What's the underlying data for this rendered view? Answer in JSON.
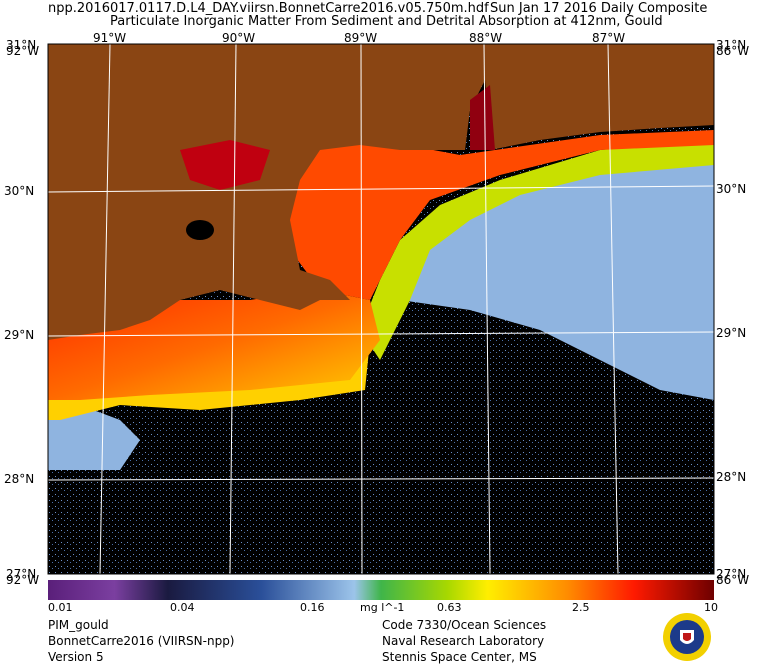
{
  "header": {
    "filename": "npp.2016017.0117.D.L4_DAY.viirsn.BonnetCarre2016.v05.750m.hdf",
    "date": "Sun Jan 17 2016 Daily Composite",
    "subtitle": "Particulate Inorganic Matter From Sediment and Detrital Absorption at 412nm, Gould"
  },
  "map": {
    "lon_ticks": [
      "91°W",
      "90°W",
      "89°W",
      "88°W",
      "87°W"
    ],
    "lat_ticks": [
      "30°N",
      "29°N",
      "28°N"
    ],
    "corner_labels": {
      "top_left": "31°N",
      "top_left_lon": "92°W",
      "top_right": "31°N",
      "top_right_lon": "86°W",
      "bottom_left": "27°N",
      "bottom_left_lon": "92°W",
      "bottom_right": "27°N",
      "bottom_right_lon": "86°W"
    },
    "colors": {
      "land": "#8a4513",
      "no_data": "#000000",
      "grid": "#ffffff"
    }
  },
  "colorbar": {
    "labels": [
      "0.01",
      "0.04",
      "0.16",
      "0.63",
      "2.5",
      "10"
    ],
    "unit": "mg l^-1",
    "scale": "log"
  },
  "footer": {
    "left": [
      "PIM_gould",
      "BonnetCarre2016 (VIIRSN-npp)",
      "Version 5"
    ],
    "right": [
      "Code 7330/Ocean Sciences",
      "Naval Research Laboratory",
      "Stennis Space Center, MS"
    ]
  }
}
